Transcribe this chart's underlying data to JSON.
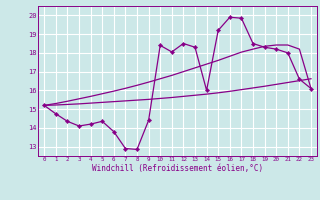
{
  "xlabel": "Windchill (Refroidissement éolien,°C)",
  "background_color": "#cce8e8",
  "line_color": "#880088",
  "xlim": [
    -0.5,
    23.5
  ],
  "ylim": [
    12.5,
    20.5
  ],
  "yticks": [
    13,
    14,
    15,
    16,
    17,
    18,
    19,
    20
  ],
  "xticks": [
    0,
    1,
    2,
    3,
    4,
    5,
    6,
    7,
    8,
    9,
    10,
    11,
    12,
    13,
    14,
    15,
    16,
    17,
    18,
    19,
    20,
    21,
    22,
    23
  ],
  "x_data": [
    0,
    1,
    2,
    3,
    4,
    5,
    6,
    7,
    8,
    9,
    10,
    11,
    12,
    13,
    14,
    15,
    16,
    17,
    18,
    19,
    20,
    21,
    22,
    23
  ],
  "y_jagged": [
    15.2,
    14.75,
    14.35,
    14.1,
    14.2,
    14.35,
    13.8,
    12.9,
    12.85,
    14.4,
    18.4,
    18.05,
    18.5,
    18.3,
    16.0,
    19.2,
    19.9,
    19.85,
    18.5,
    18.3,
    18.2,
    18.0,
    16.6,
    16.1
  ],
  "y_line1": [
    15.2,
    15.22,
    15.25,
    15.28,
    15.32,
    15.36,
    15.4,
    15.44,
    15.48,
    15.52,
    15.57,
    15.62,
    15.68,
    15.74,
    15.8,
    15.87,
    15.95,
    16.04,
    16.13,
    16.22,
    16.32,
    16.42,
    16.52,
    16.62
  ],
  "y_line2": [
    15.2,
    15.3,
    15.42,
    15.55,
    15.68,
    15.82,
    15.96,
    16.11,
    16.27,
    16.44,
    16.62,
    16.8,
    17.0,
    17.2,
    17.4,
    17.6,
    17.82,
    18.04,
    18.2,
    18.35,
    18.42,
    18.42,
    18.2,
    16.1
  ]
}
